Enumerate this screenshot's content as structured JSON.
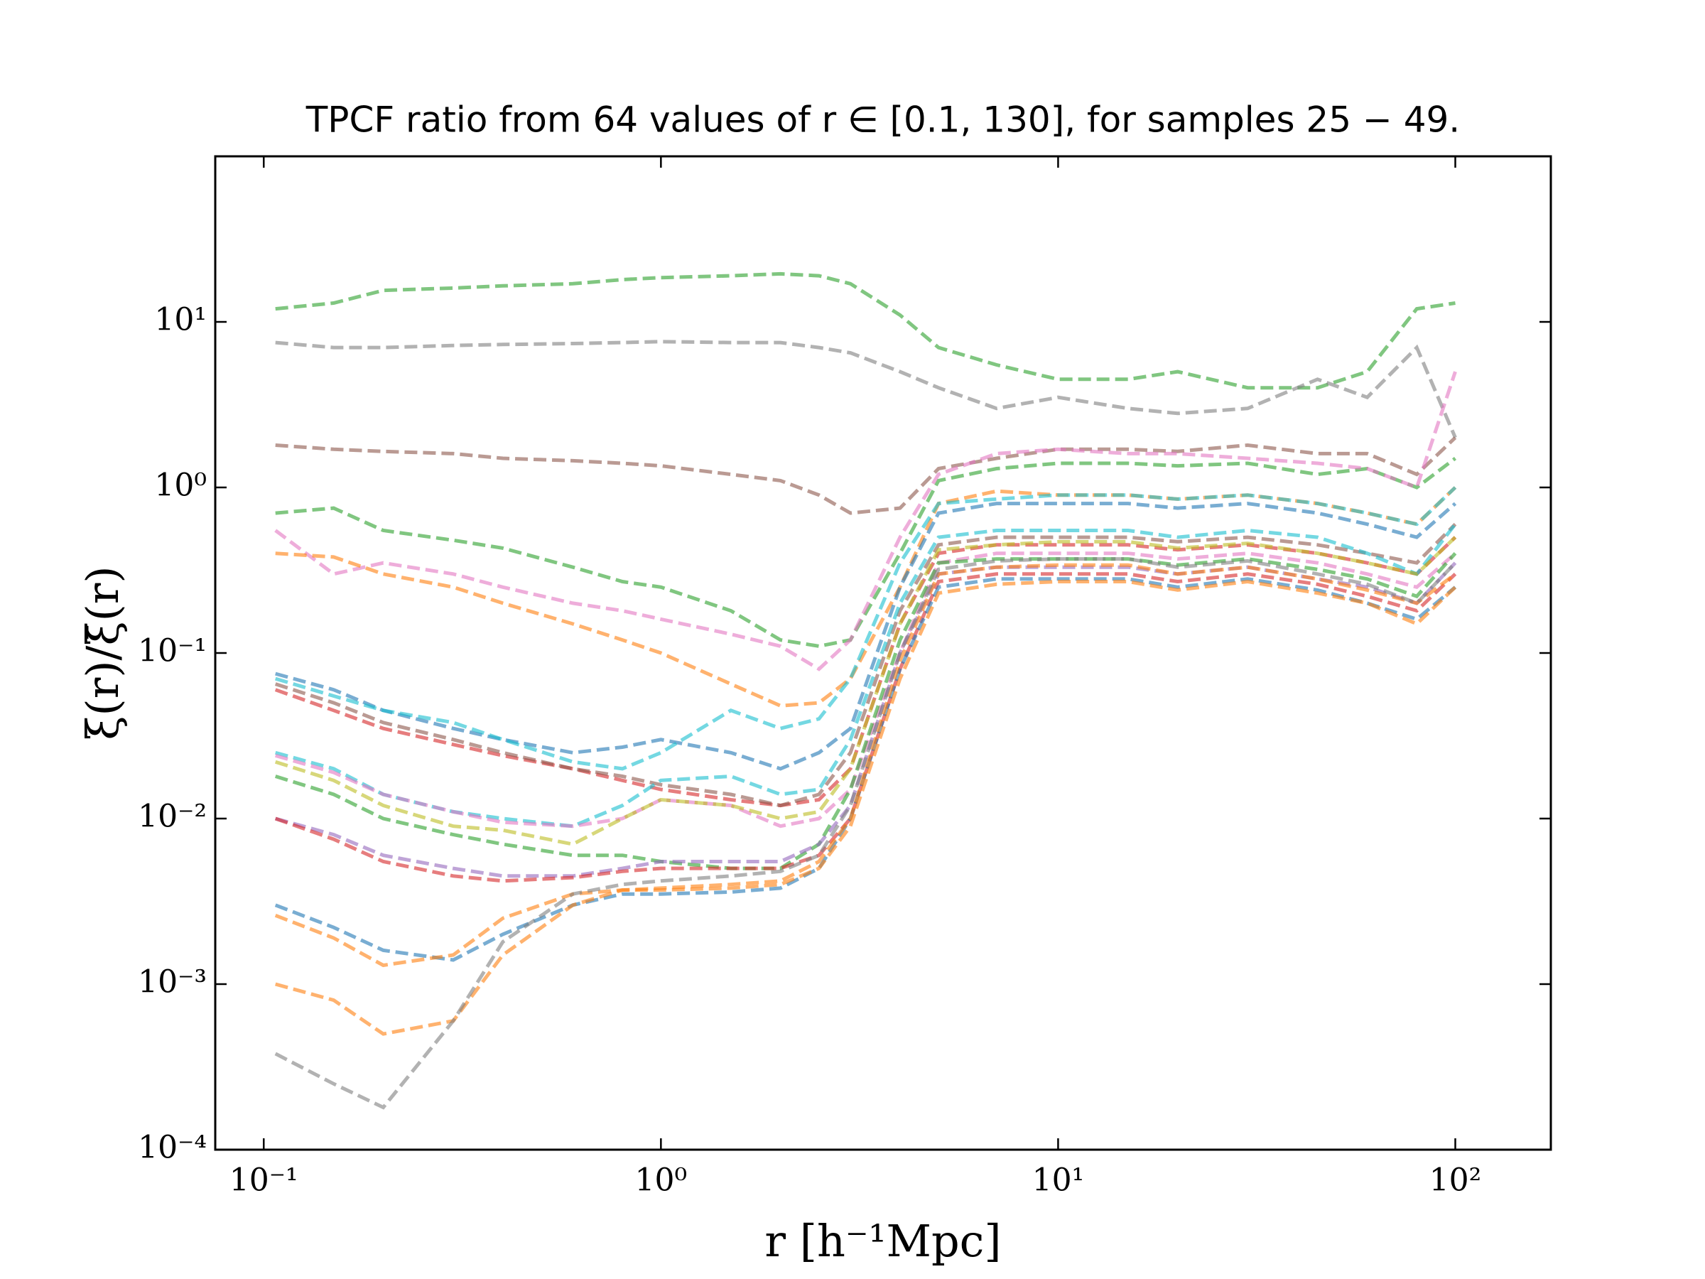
{
  "chart_data": {
    "type": "line",
    "title": "TPCF ratio from 64 values of r ∈ [0.1, 130], for samples 25 − 49.",
    "x_label": "r [h⁻¹Mpc]",
    "y_label": "ξ(r)/ξ̄(r)",
    "log_x": true,
    "log_y": true,
    "line_style": "dashed",
    "opacity": 0.6,
    "xlim": [
      0.0755,
      174
    ],
    "ylim": [
      0.0001,
      100
    ],
    "xticks": [
      {
        "value": 0.1,
        "label": "10⁻¹"
      },
      {
        "value": 1,
        "label": "10⁰"
      },
      {
        "value": 10,
        "label": "10¹"
      },
      {
        "value": 100,
        "label": "10²"
      }
    ],
    "yticks": [
      {
        "value": 0.0001,
        "label": "10⁻⁴"
      },
      {
        "value": 0.001,
        "label": "10⁻³"
      },
      {
        "value": 0.01,
        "label": "10⁻²"
      },
      {
        "value": 0.1,
        "label": "10⁻¹"
      },
      {
        "value": 1,
        "label": "10⁰"
      },
      {
        "value": 10,
        "label": "10¹"
      }
    ],
    "x": [
      0.107,
      0.15,
      0.2,
      0.3,
      0.4,
      0.6,
      0.8,
      1,
      1.5,
      2,
      2.5,
      3,
      4,
      5,
      7,
      10,
      15,
      20,
      30,
      45,
      60,
      80,
      100
    ],
    "series": [
      {
        "color": "#2ca02c",
        "values": [
          12,
          13,
          15.5,
          16,
          16.5,
          17,
          18,
          18.5,
          19,
          19.5,
          19,
          17,
          11,
          7,
          5.5,
          4.5,
          4.5,
          5,
          4,
          4,
          5,
          12,
          13
        ]
      },
      {
        "color": "#7f7f7f",
        "values": [
          7.5,
          7,
          7,
          7.2,
          7.3,
          7.4,
          7.5,
          7.6,
          7.5,
          7.5,
          7,
          6.5,
          5,
          4,
          3,
          3.5,
          3,
          2.8,
          3,
          4.5,
          3.5,
          7,
          2
        ]
      },
      {
        "color": "#8c564b",
        "values": [
          1.8,
          1.7,
          1.65,
          1.6,
          1.5,
          1.45,
          1.4,
          1.35,
          1.2,
          1.1,
          0.9,
          0.7,
          0.75,
          1.3,
          1.5,
          1.7,
          1.7,
          1.65,
          1.8,
          1.6,
          1.6,
          1.2,
          2
        ]
      },
      {
        "color": "#2ca02c",
        "values": [
          0.7,
          0.75,
          0.55,
          0.48,
          0.43,
          0.33,
          0.27,
          0.25,
          0.18,
          0.12,
          0.11,
          0.12,
          0.4,
          1.1,
          1.3,
          1.4,
          1.4,
          1.35,
          1.4,
          1.2,
          1.3,
          1,
          1.5
        ]
      },
      {
        "color": "#e377c2",
        "values": [
          0.55,
          0.3,
          0.35,
          0.3,
          0.25,
          0.2,
          0.18,
          0.16,
          0.13,
          0.11,
          0.08,
          0.12,
          0.5,
          1.2,
          1.6,
          1.7,
          1.6,
          1.6,
          1.5,
          1.4,
          1.3,
          1,
          5
        ]
      },
      {
        "color": "#ff7f0e",
        "values": [
          0.4,
          0.38,
          0.3,
          0.25,
          0.2,
          0.15,
          0.12,
          0.1,
          0.065,
          0.048,
          0.05,
          0.07,
          0.25,
          0.8,
          0.95,
          0.9,
          0.9,
          0.85,
          0.9,
          0.8,
          0.7,
          0.6,
          1
        ]
      },
      {
        "color": "#1f77b4",
        "values": [
          0.075,
          0.06,
          0.045,
          0.035,
          0.03,
          0.025,
          0.027,
          0.03,
          0.025,
          0.02,
          0.025,
          0.035,
          0.25,
          0.7,
          0.8,
          0.8,
          0.8,
          0.75,
          0.8,
          0.7,
          0.6,
          0.5,
          0.8
        ]
      },
      {
        "color": "#17becf",
        "values": [
          0.07,
          0.055,
          0.045,
          0.038,
          0.03,
          0.022,
          0.02,
          0.025,
          0.045,
          0.035,
          0.04,
          0.07,
          0.35,
          0.8,
          0.85,
          0.9,
          0.9,
          0.85,
          0.9,
          0.8,
          0.7,
          0.6,
          1
        ]
      },
      {
        "color": "#d62728",
        "values": [
          0.06,
          0.045,
          0.035,
          0.028,
          0.024,
          0.02,
          0.017,
          0.015,
          0.013,
          0.012,
          0.013,
          0.02,
          0.15,
          0.4,
          0.45,
          0.45,
          0.45,
          0.42,
          0.45,
          0.4,
          0.35,
          0.3,
          0.5
        ]
      },
      {
        "color": "#8c564b",
        "values": [
          0.065,
          0.05,
          0.038,
          0.03,
          0.025,
          0.02,
          0.018,
          0.016,
          0.014,
          0.012,
          0.014,
          0.025,
          0.18,
          0.45,
          0.5,
          0.5,
          0.5,
          0.47,
          0.5,
          0.45,
          0.4,
          0.35,
          0.6
        ]
      },
      {
        "color": "#17becf",
        "values": [
          0.025,
          0.02,
          0.014,
          0.011,
          0.01,
          0.009,
          0.012,
          0.017,
          0.018,
          0.014,
          0.015,
          0.03,
          0.2,
          0.5,
          0.55,
          0.55,
          0.55,
          0.5,
          0.55,
          0.5,
          0.4,
          0.3,
          0.6
        ]
      },
      {
        "color": "#e377c2",
        "values": [
          0.024,
          0.019,
          0.014,
          0.011,
          0.0095,
          0.009,
          0.01,
          0.013,
          0.012,
          0.009,
          0.01,
          0.015,
          0.1,
          0.35,
          0.4,
          0.4,
          0.4,
          0.37,
          0.4,
          0.35,
          0.3,
          0.25,
          0.4
        ]
      },
      {
        "color": "#bcbd22",
        "values": [
          0.022,
          0.017,
          0.012,
          0.009,
          0.0085,
          0.007,
          0.01,
          0.013,
          0.012,
          0.01,
          0.011,
          0.02,
          0.15,
          0.42,
          0.45,
          0.47,
          0.47,
          0.43,
          0.46,
          0.4,
          0.35,
          0.3,
          0.5
        ]
      },
      {
        "color": "#2ca02c",
        "values": [
          0.018,
          0.014,
          0.01,
          0.008,
          0.007,
          0.006,
          0.006,
          0.0055,
          0.005,
          0.005,
          0.007,
          0.015,
          0.12,
          0.35,
          0.37,
          0.37,
          0.37,
          0.34,
          0.37,
          0.32,
          0.28,
          0.22,
          0.4
        ]
      },
      {
        "color": "#9467bd",
        "values": [
          0.01,
          0.008,
          0.006,
          0.005,
          0.0045,
          0.0045,
          0.005,
          0.0055,
          0.0055,
          0.0055,
          0.007,
          0.012,
          0.1,
          0.3,
          0.33,
          0.33,
          0.33,
          0.3,
          0.33,
          0.28,
          0.25,
          0.2,
          0.35
        ]
      },
      {
        "color": "#d62728",
        "values": [
          0.01,
          0.0075,
          0.0055,
          0.0045,
          0.0042,
          0.0044,
          0.0048,
          0.005,
          0.005,
          0.005,
          0.006,
          0.01,
          0.08,
          0.27,
          0.3,
          0.3,
          0.3,
          0.27,
          0.3,
          0.26,
          0.22,
          0.18,
          0.3
        ]
      },
      {
        "color": "#1f77b4",
        "values": [
          0.003,
          0.0022,
          0.0016,
          0.0014,
          0.002,
          0.003,
          0.0035,
          0.0035,
          0.0036,
          0.0038,
          0.005,
          0.01,
          0.08,
          0.25,
          0.28,
          0.28,
          0.28,
          0.25,
          0.28,
          0.24,
          0.2,
          0.16,
          0.25
        ]
      },
      {
        "color": "#ff7f0e",
        "values": [
          0.0026,
          0.0019,
          0.0013,
          0.0015,
          0.0025,
          0.0035,
          0.0037,
          0.0037,
          0.0038,
          0.004,
          0.005,
          0.009,
          0.07,
          0.23,
          0.26,
          0.27,
          0.27,
          0.24,
          0.27,
          0.23,
          0.2,
          0.15,
          0.25
        ]
      },
      {
        "color": "#ff7f0e",
        "values": [
          0.001,
          0.0008,
          0.0005,
          0.0006,
          0.0015,
          0.003,
          0.0037,
          0.0038,
          0.004,
          0.0042,
          0.0055,
          0.01,
          0.09,
          0.3,
          0.33,
          0.34,
          0.34,
          0.3,
          0.33,
          0.28,
          0.24,
          0.2,
          0.3
        ]
      },
      {
        "color": "#7f7f7f",
        "values": [
          0.00038,
          0.00025,
          0.00018,
          0.0006,
          0.0018,
          0.0035,
          0.004,
          0.0042,
          0.0045,
          0.0048,
          0.006,
          0.012,
          0.1,
          0.32,
          0.36,
          0.37,
          0.37,
          0.33,
          0.36,
          0.3,
          0.26,
          0.2,
          0.35
        ]
      }
    ]
  }
}
